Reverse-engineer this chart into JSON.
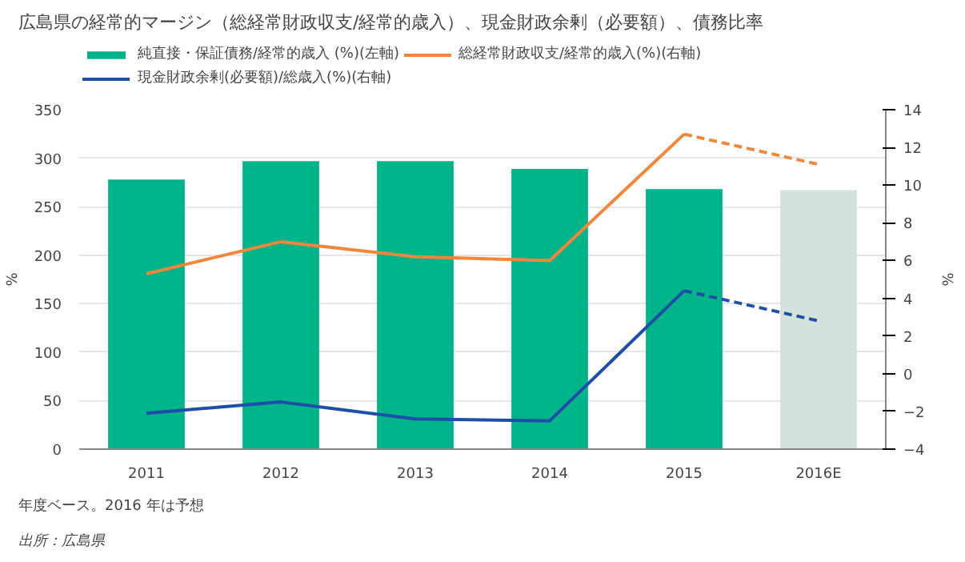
{
  "chart_data": {
    "type": "bar",
    "title": "広島県の経常的マージン（総経常財政収支/経常的歳入）、現金財政余剰（必要額）、債務比率",
    "categories": [
      "2011",
      "2012",
      "2013",
      "2014",
      "2015",
      "2016E"
    ],
    "ylabel": "%",
    "y2label": "%",
    "series": [
      {
        "name": "純直接・保証債務/経常的歳入 (%)(左軸)",
        "color": "#00b48a",
        "colors": [
          "#00b48a",
          "#00b48a",
          "#00b48a",
          "#00b48a",
          "#00b48a",
          "#d3e3dc"
        ],
        "values": [
          278,
          297,
          297,
          289,
          268,
          267
        ]
      },
      {
        "name": "現金財政余剰(必要額)/総歳入(%)(右軸)",
        "type": "line",
        "axis": "y2",
        "color": "#1f4ea8",
        "line_style": "solid",
        "values": [
          -2.1,
          -1.5,
          -2.4,
          -2.5,
          4.4,
          null
        ]
      },
      {
        "name": "総経常財政収支/経常的歳入(%)(右軸)",
        "type": "line",
        "axis": "y2",
        "color": "#f0873c",
        "line_style": "solid",
        "values": [
          5.3,
          7.0,
          6.2,
          6.0,
          12.7,
          null
        ]
      },
      {
        "type": "line",
        "axis": "y2",
        "color": "#1f4ea8",
        "line_style": "dashed",
        "values": [
          null,
          null,
          null,
          null,
          4.4,
          2.8
        ]
      },
      {
        "type": "line",
        "axis": "y2",
        "color": "#f0873c",
        "line_style": "dashed",
        "values": [
          null,
          null,
          null,
          null,
          12.7,
          11.1
        ]
      }
    ],
    "ylim": [
      0,
      350
    ],
    "yticks": [
      0,
      50,
      100,
      150,
      200,
      250,
      300,
      350
    ],
    "y2lim": [
      -4,
      14
    ],
    "y2ticks": [
      -4,
      -2,
      0,
      2,
      4,
      6,
      8,
      10,
      12,
      14
    ],
    "grid": "y",
    "legend": "top",
    "annotations": [
      "年度ベース。2016 年は予想",
      "出所：広島県"
    ]
  }
}
